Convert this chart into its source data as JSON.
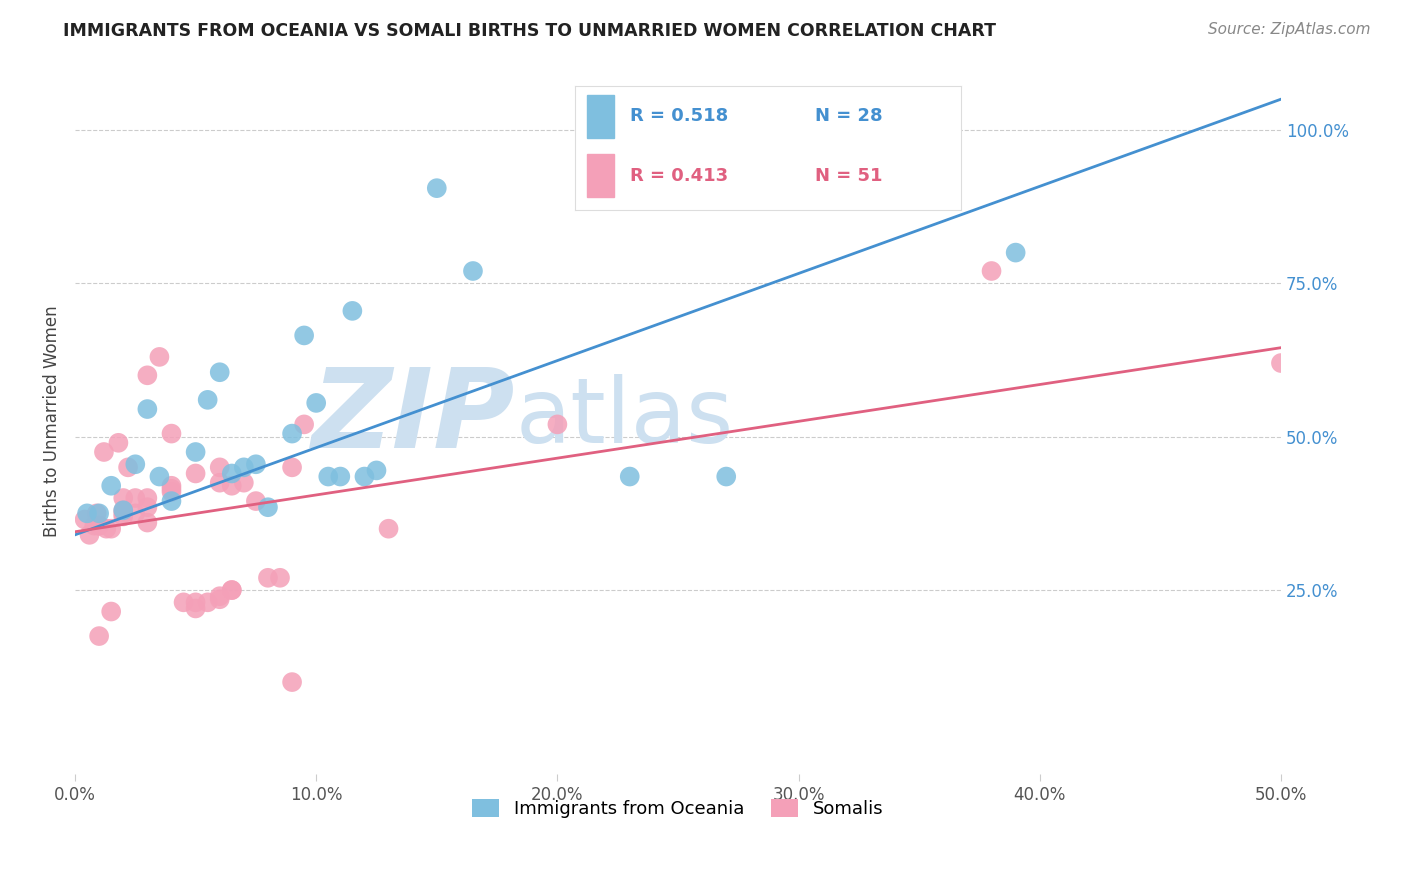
{
  "title": "IMMIGRANTS FROM OCEANIA VS SOMALI BIRTHS TO UNMARRIED WOMEN CORRELATION CHART",
  "source": "Source: ZipAtlas.com",
  "ylabel": "Births to Unmarried Women",
  "x_tick_labels": [
    "0.0%",
    "10.0%",
    "20.0%",
    "30.0%",
    "40.0%",
    "50.0%"
  ],
  "x_tick_positions": [
    0.0,
    0.1,
    0.2,
    0.3,
    0.4,
    0.5
  ],
  "y_tick_labels": [
    "25.0%",
    "50.0%",
    "75.0%",
    "100.0%"
  ],
  "y_tick_positions": [
    0.25,
    0.5,
    0.75,
    1.0
  ],
  "xlim": [
    0.0,
    0.5
  ],
  "ylim": [
    -0.05,
    1.1
  ],
  "legend_oceania_label": "Immigrants from Oceania",
  "legend_somali_label": "Somalis",
  "color_oceania": "#7fbfdf",
  "color_somali": "#f4a0b8",
  "color_line_oceania": "#4490d0",
  "color_line_somali": "#e06080",
  "watermark_zip": "ZIP",
  "watermark_atlas": "atlas",
  "watermark_color": "#cde0f0",
  "oceania_x": [
    0.005,
    0.01,
    0.015,
    0.02,
    0.025,
    0.03,
    0.035,
    0.04,
    0.05,
    0.055,
    0.06,
    0.065,
    0.07,
    0.075,
    0.08,
    0.09,
    0.095,
    0.1,
    0.105,
    0.11,
    0.115,
    0.12,
    0.125,
    0.15,
    0.165,
    0.23,
    0.27,
    0.39
  ],
  "oceania_y": [
    0.375,
    0.375,
    0.42,
    0.38,
    0.455,
    0.545,
    0.435,
    0.395,
    0.475,
    0.56,
    0.605,
    0.44,
    0.45,
    0.455,
    0.385,
    0.505,
    0.665,
    0.555,
    0.435,
    0.435,
    0.705,
    0.435,
    0.445,
    0.905,
    0.77,
    0.435,
    0.435,
    0.8
  ],
  "somali_x": [
    0.004,
    0.006,
    0.008,
    0.009,
    0.01,
    0.01,
    0.01,
    0.012,
    0.013,
    0.015,
    0.015,
    0.018,
    0.02,
    0.02,
    0.02,
    0.02,
    0.022,
    0.025,
    0.025,
    0.03,
    0.03,
    0.03,
    0.03,
    0.035,
    0.04,
    0.04,
    0.04,
    0.04,
    0.045,
    0.05,
    0.05,
    0.05,
    0.055,
    0.06,
    0.06,
    0.06,
    0.06,
    0.065,
    0.065,
    0.065,
    0.07,
    0.075,
    0.08,
    0.085,
    0.09,
    0.09,
    0.095,
    0.13,
    0.2,
    0.38,
    0.5
  ],
  "somali_y": [
    0.365,
    0.34,
    0.355,
    0.375,
    0.175,
    0.355,
    0.355,
    0.475,
    0.35,
    0.215,
    0.35,
    0.49,
    0.37,
    0.375,
    0.38,
    0.4,
    0.45,
    0.375,
    0.4,
    0.4,
    0.36,
    0.385,
    0.6,
    0.63,
    0.41,
    0.415,
    0.42,
    0.505,
    0.23,
    0.22,
    0.23,
    0.44,
    0.23,
    0.235,
    0.24,
    0.425,
    0.45,
    0.25,
    0.25,
    0.42,
    0.425,
    0.395,
    0.27,
    0.27,
    0.1,
    0.45,
    0.52,
    0.35,
    0.52,
    0.77,
    0.62
  ],
  "line_oceania_x0": 0.0,
  "line_oceania_y0": 0.34,
  "line_oceania_x1": 0.5,
  "line_oceania_y1": 1.05,
  "line_somali_x0": 0.0,
  "line_somali_y0": 0.345,
  "line_somali_x1": 0.5,
  "line_somali_y1": 0.645,
  "background_color": "#ffffff",
  "grid_color": "#cccccc"
}
